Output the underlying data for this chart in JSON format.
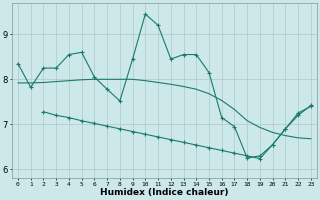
{
  "xlabel": "Humidex (Indice chaleur)",
  "bg_color": "#cce8e8",
  "grid_color": "#b0c8c8",
  "line_color": "#1a7a6e",
  "xlim": [
    -0.5,
    23.5
  ],
  "ylim": [
    5.8,
    9.7
  ],
  "yticks": [
    6,
    7,
    8,
    9
  ],
  "xticks": [
    0,
    1,
    2,
    3,
    4,
    5,
    6,
    7,
    8,
    9,
    10,
    11,
    12,
    13,
    14,
    15,
    16,
    17,
    18,
    19,
    20,
    21,
    22,
    23
  ],
  "series1_x": [
    0,
    1,
    2,
    3,
    4,
    5,
    6,
    7,
    8,
    9,
    10,
    11,
    12,
    13,
    14,
    15,
    16,
    17,
    18,
    19,
    20,
    21,
    22,
    23
  ],
  "series1_y": [
    8.35,
    7.82,
    8.25,
    8.25,
    8.55,
    8.6,
    8.05,
    7.78,
    7.52,
    8.45,
    9.45,
    9.2,
    8.45,
    8.55,
    8.55,
    8.15,
    7.15,
    6.95,
    6.25,
    6.3,
    6.55,
    6.9,
    7.25,
    7.4
  ],
  "series2_x": [
    0,
    1,
    2,
    3,
    4,
    5,
    6,
    7,
    8,
    9,
    10,
    11,
    12,
    13,
    14,
    15,
    16,
    17,
    18,
    19,
    20,
    21,
    22,
    23
  ],
  "series2_y": [
    7.92,
    7.92,
    7.93,
    7.95,
    7.97,
    7.99,
    8.0,
    8.0,
    8.0,
    8.0,
    7.97,
    7.93,
    7.89,
    7.84,
    7.78,
    7.68,
    7.53,
    7.33,
    7.08,
    6.93,
    6.82,
    6.75,
    6.7,
    6.68
  ],
  "series3_x": [
    2,
    3,
    4,
    5,
    6,
    7,
    8,
    9,
    10,
    11,
    12,
    13,
    14,
    15,
    16,
    17,
    18,
    19,
    20,
    21,
    22,
    23
  ],
  "series3_y": [
    7.28,
    7.2,
    7.15,
    7.08,
    7.02,
    6.96,
    6.9,
    6.84,
    6.78,
    6.72,
    6.66,
    6.6,
    6.54,
    6.48,
    6.42,
    6.36,
    6.3,
    6.24,
    6.55,
    6.9,
    7.2,
    7.42
  ]
}
